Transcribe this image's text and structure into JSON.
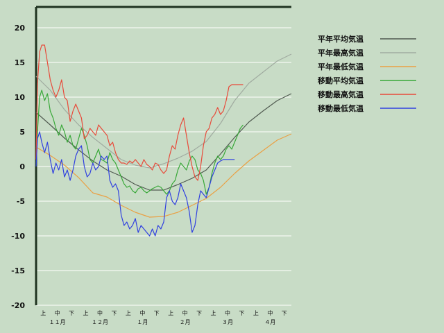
{
  "chart_data": {
    "type": "line",
    "ylim": [
      -20,
      23
    ],
    "yticks": [
      20,
      15,
      10,
      5,
      0,
      -5,
      -10,
      -15,
      -20
    ],
    "grid": true,
    "legend_position": "top-right",
    "x_range_thirds": [
      0,
      18
    ],
    "x_subticks": [
      {
        "t": 0.5,
        "label": "上"
      },
      {
        "t": 1.5,
        "label": "中"
      },
      {
        "t": 2.5,
        "label": "下"
      },
      {
        "t": 3.5,
        "label": "上"
      },
      {
        "t": 4.5,
        "label": "中"
      },
      {
        "t": 5.5,
        "label": "下"
      },
      {
        "t": 6.5,
        "label": "上"
      },
      {
        "t": 7.5,
        "label": "中"
      },
      {
        "t": 8.5,
        "label": "下"
      },
      {
        "t": 9.5,
        "label": "上"
      },
      {
        "t": 10.5,
        "label": "中"
      },
      {
        "t": 11.5,
        "label": "下"
      },
      {
        "t": 12.5,
        "label": "上"
      },
      {
        "t": 13.5,
        "label": "中"
      },
      {
        "t": 14.5,
        "label": "下"
      },
      {
        "t": 15.5,
        "label": "上"
      },
      {
        "t": 16.5,
        "label": "中"
      },
      {
        "t": 17.5,
        "label": "下"
      }
    ],
    "x_months": [
      {
        "t": 1.5,
        "label": "１１月"
      },
      {
        "t": 4.5,
        "label": "１２月"
      },
      {
        "t": 7.5,
        "label": "１月"
      },
      {
        "t": 10.5,
        "label": "２月"
      },
      {
        "t": 13.5,
        "label": "３月"
      },
      {
        "t": 16.5,
        "label": "４月"
      }
    ],
    "series": [
      {
        "name": "平年平均気温",
        "color": "#505a50",
        "x": [
          0,
          1,
          2,
          3,
          4,
          5,
          6,
          7,
          8,
          9,
          10,
          11,
          12,
          13,
          14,
          15,
          16,
          17,
          18
        ],
        "y": [
          7.8,
          6.0,
          4.1,
          2.4,
          0.8,
          -0.5,
          -1.4,
          -2.6,
          -3.4,
          -3.4,
          -2.6,
          -1.7,
          -0.5,
          1.8,
          4.2,
          6.4,
          8.0,
          9.5,
          10.5
        ]
      },
      {
        "name": "平年最高気温",
        "color": "#a0aba0",
        "x": [
          0,
          1,
          2,
          3,
          4,
          5,
          6,
          7,
          8,
          9,
          10,
          11,
          12,
          13,
          14,
          15,
          16,
          17,
          18
        ],
        "y": [
          13.0,
          11.0,
          8.2,
          6.0,
          4.2,
          2.6,
          1.0,
          0.2,
          -0.2,
          0.4,
          1.2,
          2.2,
          3.6,
          6.2,
          9.5,
          12.0,
          13.6,
          15.2,
          16.2
        ]
      },
      {
        "name": "平年最低気温",
        "color": "#eaa044",
        "x": [
          0,
          1,
          2,
          3,
          4,
          5,
          6,
          7,
          8,
          9,
          10,
          11,
          12,
          13,
          14,
          15,
          16,
          17,
          18
        ],
        "y": [
          2.8,
          1.6,
          0.2,
          -1.6,
          -3.8,
          -4.4,
          -5.6,
          -6.6,
          -7.3,
          -7.2,
          -6.6,
          -5.6,
          -4.6,
          -3.0,
          -1.0,
          0.8,
          2.3,
          3.8,
          4.7
        ]
      },
      {
        "name": "移動平均気温",
        "color": "#38a838",
        "x": [
          0,
          0.1,
          0.25,
          0.4,
          0.6,
          0.8,
          1.0,
          1.2,
          1.4,
          1.6,
          1.8,
          2.0,
          2.2,
          2.4,
          2.6,
          2.8,
          3.0,
          3.2,
          3.4,
          3.6,
          3.8,
          4.0,
          4.2,
          4.4,
          4.6,
          4.8,
          5.0,
          5.2,
          5.4,
          5.6,
          5.8,
          6.0,
          6.2,
          6.4,
          6.6,
          6.8,
          7.0,
          7.2,
          7.4,
          7.6,
          7.8,
          8.0,
          8.2,
          8.4,
          8.6,
          8.8,
          9.0,
          9.2,
          9.4,
          9.6,
          9.8,
          10.0,
          10.2,
          10.4,
          10.6,
          10.8,
          11.0,
          11.2,
          11.4,
          11.6,
          11.8,
          12.0,
          12.2,
          12.4,
          12.6,
          12.8,
          13.0,
          13.2,
          13.4,
          13.6,
          13.8,
          14.0,
          14.2,
          14.4,
          14.6
        ],
        "y": [
          0.0,
          5.0,
          10.0,
          11.0,
          9.5,
          10.5,
          8.0,
          7.0,
          5.5,
          4.5,
          6.0,
          5.0,
          3.5,
          4.5,
          3.0,
          2.5,
          4.0,
          5.5,
          4.5,
          3.0,
          1.0,
          0.5,
          1.5,
          2.5,
          1.0,
          0.8,
          0.5,
          2.0,
          1.0,
          0.5,
          -0.5,
          -1.5,
          -2.5,
          -3.0,
          -2.8,
          -3.5,
          -3.8,
          -3.2,
          -3.0,
          -3.5,
          -3.8,
          -3.5,
          -3.2,
          -3.0,
          -2.8,
          -3.0,
          -3.5,
          -4.0,
          -3.5,
          -2.5,
          -2.0,
          -0.5,
          0.5,
          0.0,
          -0.5,
          0.8,
          1.5,
          1.0,
          -0.5,
          -1.0,
          -2.0,
          -4.0,
          -3.0,
          -1.0,
          0.5,
          1.5,
          1.0,
          1.5,
          2.5,
          3.0,
          2.5,
          3.5,
          4.5,
          5.5,
          6.0
        ]
      },
      {
        "name": "移動最高気温",
        "color": "#e84a3a",
        "x": [
          0,
          0.1,
          0.25,
          0.4,
          0.6,
          0.8,
          1.0,
          1.2,
          1.4,
          1.6,
          1.8,
          2.0,
          2.2,
          2.4,
          2.6,
          2.8,
          3.0,
          3.2,
          3.4,
          3.6,
          3.8,
          4.0,
          4.2,
          4.4,
          4.6,
          4.8,
          5.0,
          5.2,
          5.4,
          5.6,
          5.8,
          6.0,
          6.2,
          6.4,
          6.6,
          6.8,
          7.0,
          7.2,
          7.4,
          7.6,
          7.8,
          8.0,
          8.2,
          8.4,
          8.6,
          8.8,
          9.0,
          9.2,
          9.4,
          9.6,
          9.8,
          10.0,
          10.2,
          10.4,
          10.6,
          10.8,
          11.0,
          11.2,
          11.4,
          11.6,
          11.8,
          12.0,
          12.2,
          12.4,
          12.6,
          12.8,
          13.0,
          13.2,
          13.4,
          13.6,
          13.8,
          14.0,
          14.2,
          14.4,
          14.6
        ],
        "y": [
          1.0,
          12.0,
          16.5,
          17.5,
          17.5,
          15.0,
          12.5,
          11.0,
          10.0,
          11.0,
          12.5,
          10.0,
          9.5,
          6.5,
          8.0,
          9.0,
          8.0,
          7.0,
          4.0,
          4.5,
          5.5,
          5.0,
          4.5,
          6.0,
          5.5,
          5.0,
          4.5,
          3.0,
          3.5,
          2.0,
          1.0,
          0.5,
          0.5,
          0.3,
          0.8,
          0.5,
          1.0,
          0.5,
          0.0,
          1.0,
          0.3,
          0.0,
          -0.5,
          0.5,
          0.3,
          -0.5,
          -1.0,
          -0.5,
          1.5,
          3.0,
          2.5,
          4.5,
          6.0,
          7.0,
          4.5,
          2.0,
          0.0,
          -1.5,
          -2.0,
          0.0,
          3.0,
          5.0,
          5.5,
          7.0,
          7.5,
          8.5,
          7.5,
          8.0,
          9.5,
          11.5,
          11.8,
          11.8,
          11.8,
          11.8,
          11.8
        ]
      },
      {
        "name": "移動最低気温",
        "color": "#3040e0",
        "x": [
          0,
          0.1,
          0.25,
          0.4,
          0.6,
          0.8,
          1.0,
          1.2,
          1.4,
          1.6,
          1.8,
          2.0,
          2.2,
          2.4,
          2.6,
          2.8,
          3.0,
          3.2,
          3.4,
          3.6,
          3.8,
          4.0,
          4.2,
          4.4,
          4.6,
          4.8,
          5.0,
          5.2,
          5.4,
          5.6,
          5.8,
          6.0,
          6.2,
          6.4,
          6.6,
          6.8,
          7.0,
          7.2,
          7.4,
          7.6,
          7.8,
          8.0,
          8.2,
          8.4,
          8.6,
          8.8,
          9.0,
          9.2,
          9.4,
          9.6,
          9.8,
          10.0,
          10.2,
          10.4,
          10.6,
          10.8,
          11.0,
          11.2,
          11.4,
          11.6,
          11.8,
          12.0,
          12.2,
          12.4,
          12.6,
          12.8,
          13.0,
          13.2,
          13.4,
          13.6,
          13.8,
          14.0
        ],
        "y": [
          0.0,
          4.0,
          5.0,
          3.5,
          2.0,
          3.5,
          1.0,
          -1.0,
          0.5,
          -0.5,
          1.0,
          -1.5,
          -0.5,
          -2.0,
          -0.5,
          1.5,
          2.5,
          3.0,
          0.0,
          -1.5,
          -1.0,
          0.5,
          -0.5,
          0.0,
          1.5,
          1.0,
          1.5,
          -2.0,
          -3.0,
          -2.5,
          -3.5,
          -7.0,
          -8.5,
          -8.0,
          -9.0,
          -8.5,
          -7.5,
          -9.5,
          -8.5,
          -9.0,
          -9.5,
          -10.0,
          -9.0,
          -10.0,
          -8.5,
          -9.0,
          -8.0,
          -4.5,
          -3.5,
          -5.0,
          -5.5,
          -4.5,
          -2.5,
          -3.5,
          -4.5,
          -6.5,
          -9.5,
          -8.5,
          -5.5,
          -3.5,
          -4.0,
          -4.5,
          -3.0,
          -1.5,
          -0.5,
          0.5,
          0.8,
          1.0,
          1.0,
          1.0,
          1.0,
          1.0
        ]
      }
    ]
  }
}
